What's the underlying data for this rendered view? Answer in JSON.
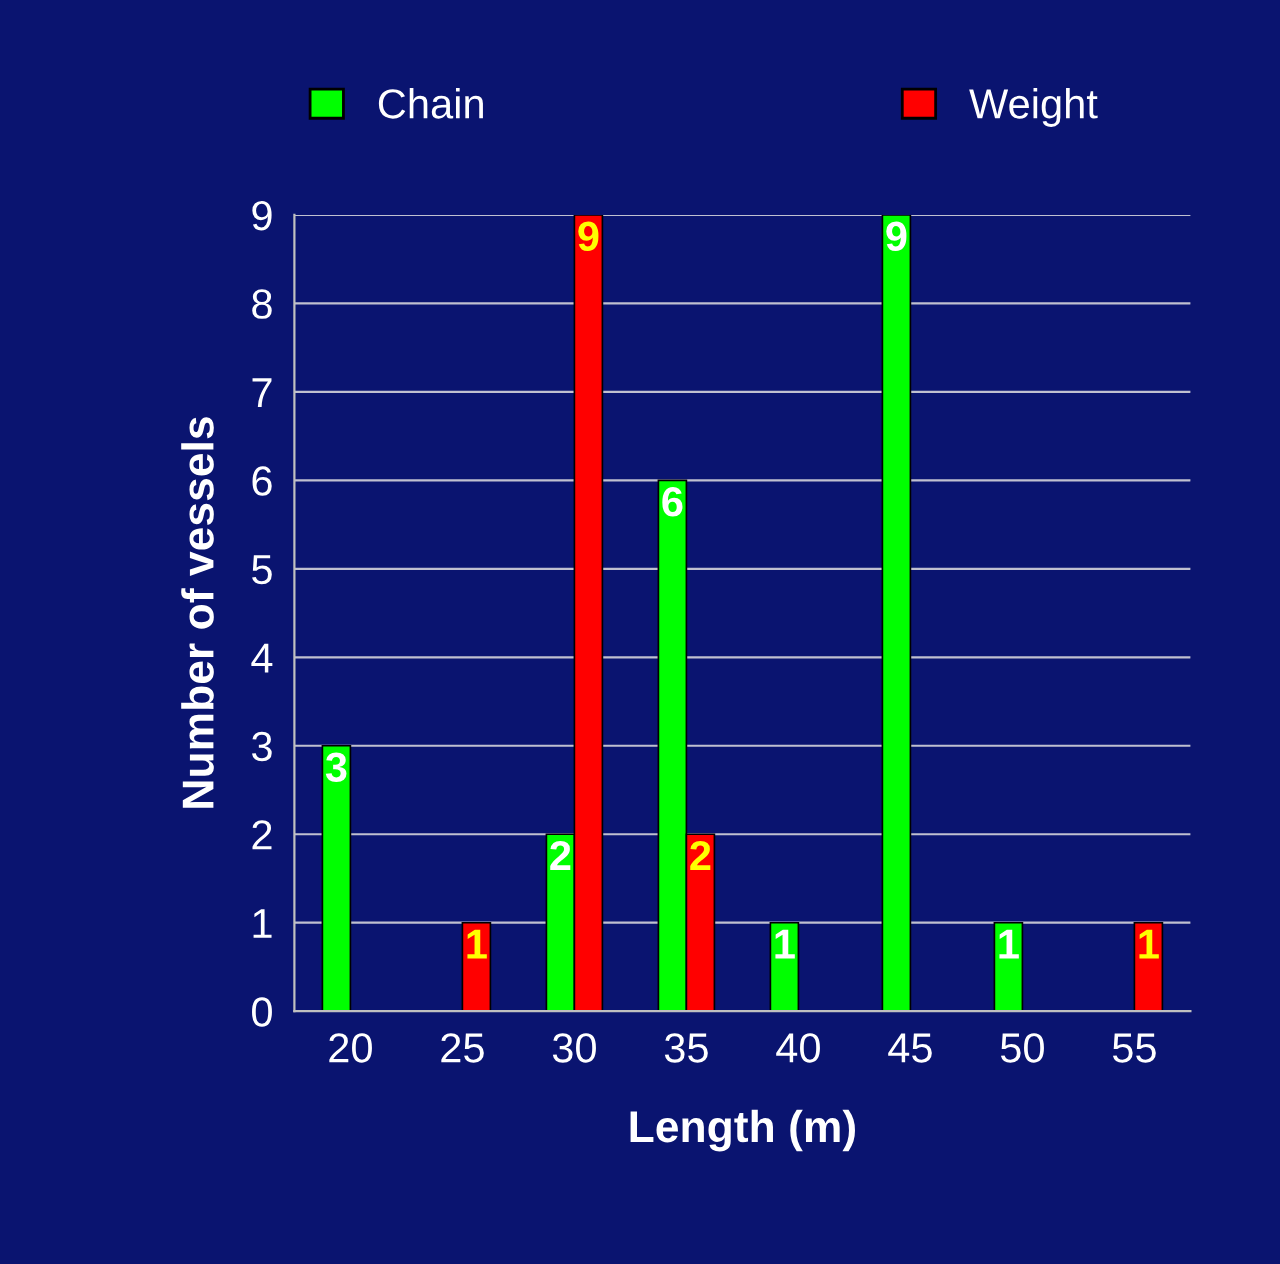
{
  "chart_data": {
    "type": "bar",
    "xlabel": "Length (m)",
    "ylabel": "Number of vessels",
    "categories": [
      "20",
      "25",
      "30",
      "35",
      "40",
      "45",
      "50",
      "55"
    ],
    "series": [
      {
        "name": "Chain",
        "color": "#00ff00",
        "values": [
          3,
          null,
          2,
          6,
          1,
          9,
          1,
          null
        ]
      },
      {
        "name": "Weight",
        "color": "#ff0000",
        "values": [
          null,
          1,
          9,
          2,
          null,
          null,
          null,
          1
        ]
      }
    ],
    "ylim": [
      0,
      9
    ],
    "yticks": [
      0,
      1,
      2,
      3,
      4,
      5,
      6,
      7,
      8,
      9
    ],
    "grid": "y",
    "legend": "top",
    "data_labels": true
  }
}
